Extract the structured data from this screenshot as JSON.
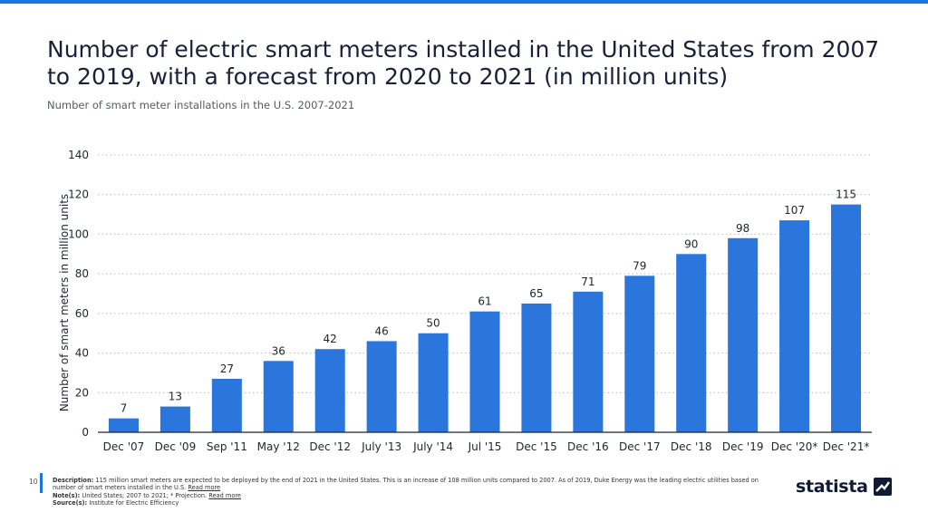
{
  "header": {
    "title": "Number of electric smart meters installed in the United States from 2007 to 2019, with a forecast from 2020 to 2021 (in million units)",
    "subtitle": "Number of smart meter installations in the U.S. 2007-2021"
  },
  "chart_data": {
    "type": "bar",
    "categories": [
      "Dec '07",
      "Dec '09",
      "Sep '11",
      "May '12",
      "Dec '12",
      "July '13",
      "July '14",
      "Jul '15",
      "Dec '15",
      "Dec '16",
      "Dec '17",
      "Dec '18",
      "Dec '19",
      "Dec '20*",
      "Dec '21*"
    ],
    "values": [
      7,
      13,
      27,
      36,
      42,
      46,
      50,
      61,
      65,
      71,
      79,
      90,
      98,
      107,
      115
    ],
    "title": "",
    "xlabel": "",
    "ylabel": "Number of smart meters in million units",
    "ylim": [
      0,
      140
    ],
    "yticks": [
      0,
      20,
      40,
      60,
      80,
      100,
      120,
      140
    ],
    "grid": true,
    "bar_color": "#2a76dd"
  },
  "footer": {
    "page_number": "10",
    "description_label": "Description:",
    "description_text": "115 million smart meters are expected to be deployed by the end of 2021 in the United States. This is an increase of 108 million units compared to 2007. As of 2019, Duke Energy was the leading electric utilities based on number of smart meters installed in the U.S.",
    "read_more": "Read more",
    "notes_label": "Note(s):",
    "notes_text": "United States; 2007 to 2021; * Projection.",
    "source_label": "Source(s):",
    "source_text": "Institute for Electric Efficiency"
  },
  "brand": {
    "logo_text": "statista",
    "logo_icon": "statista-logo-icon",
    "accent_color": "#1877d9"
  }
}
